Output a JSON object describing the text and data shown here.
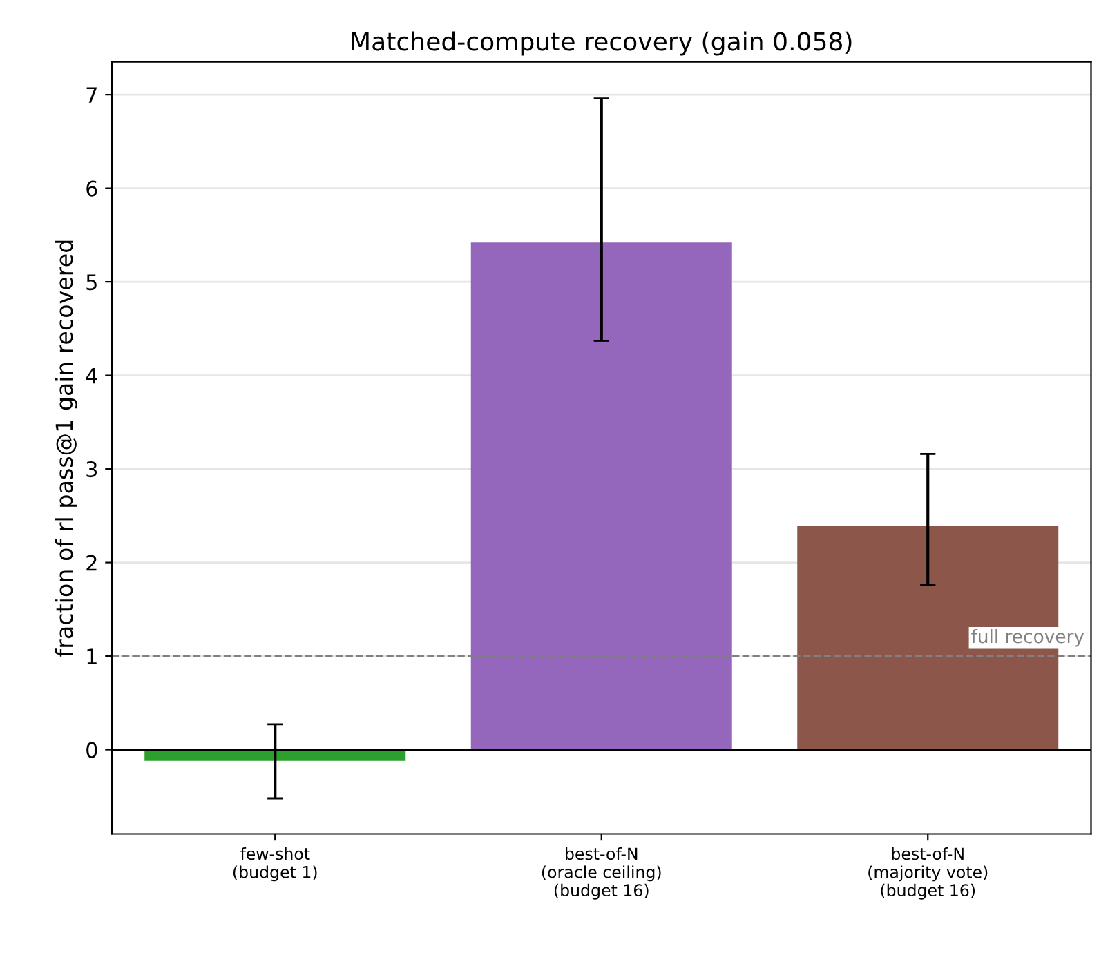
{
  "chart_data": {
    "type": "bar",
    "title": "Matched-compute recovery (gain 0.058)",
    "ylabel": "fraction of rl pass@1 gain recovered",
    "categories": [
      "few-shot\n(budget 1)",
      "best-of-N\n(oracle ceiling)\n(budget 16)",
      "best-of-N\n(majority vote)\n(budget 16)"
    ],
    "values": [
      -0.12,
      5.42,
      2.39
    ],
    "colors": [
      "#2ca02c",
      "#9467bd",
      "#8c564b"
    ],
    "errors": [
      [
        -0.52,
        0.27
      ],
      [
        4.37,
        6.96
      ],
      [
        1.76,
        3.16
      ]
    ],
    "ylim": [
      -0.9,
      7.35
    ],
    "yticks": [
      0,
      1,
      2,
      3,
      4,
      5,
      6,
      7
    ],
    "grid": "y",
    "ref_lines": [
      {
        "axis": "y",
        "value": 1,
        "label": "full recovery",
        "color": "#808080",
        "line_style": "dashed"
      },
      {
        "axis": "y",
        "value": 0,
        "label": null,
        "color": "#000000",
        "line_style": "solid"
      }
    ]
  }
}
